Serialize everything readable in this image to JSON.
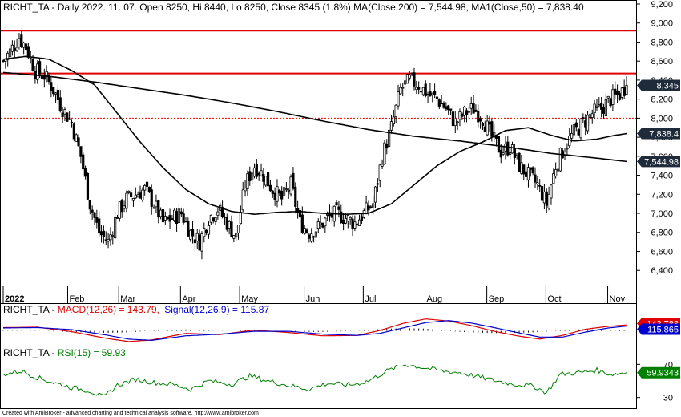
{
  "header": {
    "price_title": "RICHT_TA - Daily 2022. 11. 07. Open 8250, Hi 8440, Lo 8250, Close 8345 (1.8%) MA(Close,200) = 7,544.98, MA1(Close,50) = 7,838.40",
    "macd_name": "RICHT_TA - ",
    "macd_label": "MACD(12,26) = 143.79,",
    "signal_label": "Signal(12,26,9) = 115.87",
    "rsi_name": "RICHT_TA - ",
    "rsi_label": "RSI(15) = 59.93"
  },
  "footer": "Created with AmiBroker - advanced charting and technical analysis software. http://www.amibroker.com",
  "colors": {
    "candle": "#000000",
    "ma_line": "#000000",
    "hline_red": "#e00000",
    "macd": "#e00000",
    "signal": "#0000cc",
    "rsi": "#008000",
    "tag_dark": "#1f2a3a",
    "tag_macd": "#e00000",
    "tag_signal": "#0000cc",
    "tag_rsi": "#008000"
  },
  "price_tags": {
    "close": "8,345",
    "ma50": "7,838.4",
    "ma200": "7,544.98"
  },
  "macd_tags": {
    "macd": "143.788",
    "signal": "115.865"
  },
  "rsi_tag": "59.9343",
  "chart_data": [
    {
      "type": "candlestick",
      "title": "RICHT_TA - Daily",
      "x_labels": [
        "2022",
        "Feb",
        "Mar",
        "Apr",
        "May",
        "Jun",
        "Jul",
        "Aug",
        "Sep",
        "Oct",
        "Nov"
      ],
      "y_ticks": [
        "6,400",
        "6,600",
        "6,800",
        "7,000",
        "7,200",
        "7,400",
        "7,600",
        "7,800",
        "8,000",
        "8,200",
        "8,400",
        "8,600",
        "8,800",
        "9,000",
        "9,200"
      ],
      "ylim": [
        6250,
        9200
      ],
      "last_bar": {
        "open": 8250,
        "high": 8440,
        "low": 8250,
        "close": 8345,
        "change_pct": 1.8
      },
      "horizontal_lines": [
        {
          "value": 8920,
          "style": "solid",
          "color": "red"
        },
        {
          "value": 8470,
          "style": "solid",
          "color": "red"
        },
        {
          "value": 8000,
          "style": "dotted",
          "color": "red"
        }
      ],
      "close_anchors": [
        [
          0,
          8600
        ],
        [
          3,
          8700
        ],
        [
          7,
          8850
        ],
        [
          10,
          8750
        ],
        [
          14,
          8500
        ],
        [
          18,
          8450
        ],
        [
          22,
          8300
        ],
        [
          26,
          8100
        ],
        [
          30,
          7950
        ],
        [
          34,
          7600
        ],
        [
          38,
          7100
        ],
        [
          42,
          6800
        ],
        [
          46,
          6700
        ],
        [
          50,
          7000
        ],
        [
          54,
          7150
        ],
        [
          58,
          7200
        ],
        [
          62,
          7250
        ],
        [
          66,
          7100
        ],
        [
          70,
          6900
        ],
        [
          74,
          6950
        ],
        [
          78,
          7000
        ],
        [
          82,
          6800
        ],
        [
          86,
          6700
        ],
        [
          90,
          6950
        ],
        [
          94,
          7050
        ],
        [
          98,
          6900
        ],
        [
          102,
          6750
        ],
        [
          106,
          7300
        ],
        [
          110,
          7500
        ],
        [
          114,
          7400
        ],
        [
          118,
          7250
        ],
        [
          122,
          7150
        ],
        [
          126,
          7300
        ],
        [
          130,
          6900
        ],
        [
          134,
          6800
        ],
        [
          138,
          6850
        ],
        [
          142,
          6950
        ],
        [
          146,
          7000
        ],
        [
          150,
          6950
        ],
        [
          154,
          6900
        ],
        [
          158,
          7000
        ],
        [
          162,
          7100
        ],
        [
          166,
          7600
        ],
        [
          170,
          7900
        ],
        [
          174,
          8300
        ],
        [
          178,
          8400
        ],
        [
          182,
          8350
        ],
        [
          186,
          8250
        ],
        [
          190,
          8200
        ],
        [
          194,
          8100
        ],
        [
          198,
          7950
        ],
        [
          202,
          8050
        ],
        [
          206,
          8100
        ],
        [
          210,
          8000
        ],
        [
          214,
          7800
        ],
        [
          218,
          7650
        ],
        [
          222,
          7700
        ],
        [
          226,
          7500
        ],
        [
          230,
          7400
        ],
        [
          234,
          7300
        ],
        [
          238,
          7100
        ],
        [
          242,
          7500
        ],
        [
          246,
          7700
        ],
        [
          250,
          7850
        ],
        [
          254,
          7950
        ],
        [
          258,
          8050
        ],
        [
          262,
          8100
        ],
        [
          266,
          8200
        ],
        [
          270,
          8250
        ],
        [
          273,
          8345
        ]
      ],
      "series": [
        {
          "name": "MA(Close,200)",
          "last": 7544.98,
          "anchors": [
            [
              0,
              8480
            ],
            [
              20,
              8440
            ],
            [
              40,
              8380
            ],
            [
              60,
              8310
            ],
            [
              80,
              8240
            ],
            [
              100,
              8160
            ],
            [
              120,
              8070
            ],
            [
              140,
              7970
            ],
            [
              160,
              7880
            ],
            [
              180,
              7810
            ],
            [
              200,
              7760
            ],
            [
              220,
              7700
            ],
            [
              240,
              7630
            ],
            [
              260,
              7580
            ],
            [
              273,
              7545
            ]
          ]
        },
        {
          "name": "MA1(Close,50)",
          "last": 7838.4,
          "anchors": [
            [
              0,
              8620
            ],
            [
              10,
              8650
            ],
            [
              20,
              8620
            ],
            [
              30,
              8500
            ],
            [
              40,
              8350
            ],
            [
              50,
              8050
            ],
            [
              60,
              7750
            ],
            [
              70,
              7480
            ],
            [
              80,
              7250
            ],
            [
              90,
              7100
            ],
            [
              100,
              7020
            ],
            [
              110,
              6990
            ],
            [
              120,
              7010
            ],
            [
              130,
              7020
            ],
            [
              140,
              7000
            ],
            [
              150,
              6990
            ],
            [
              160,
              7000
            ],
            [
              170,
              7100
            ],
            [
              180,
              7300
            ],
            [
              190,
              7500
            ],
            [
              200,
              7650
            ],
            [
              210,
              7750
            ],
            [
              220,
              7870
            ],
            [
              230,
              7900
            ],
            [
              240,
              7820
            ],
            [
              250,
              7760
            ],
            [
              260,
              7780
            ],
            [
              268,
              7820
            ],
            [
              273,
              7838
            ]
          ]
        }
      ]
    },
    {
      "type": "line",
      "title": "MACD(12,26)",
      "ylim": [
        -300,
        400
      ],
      "series": [
        {
          "name": "MACD(12,26)",
          "last": 143.79,
          "anchors": [
            [
              0,
              80
            ],
            [
              15,
              90
            ],
            [
              30,
              -20
            ],
            [
              45,
              -180
            ],
            [
              55,
              -260
            ],
            [
              65,
              -220
            ],
            [
              80,
              -60
            ],
            [
              95,
              -90
            ],
            [
              110,
              20
            ],
            [
              125,
              -40
            ],
            [
              140,
              -120
            ],
            [
              155,
              -110
            ],
            [
              165,
              10
            ],
            [
              175,
              180
            ],
            [
              185,
              290
            ],
            [
              195,
              240
            ],
            [
              205,
              130
            ],
            [
              215,
              -10
            ],
            [
              225,
              -120
            ],
            [
              235,
              -200
            ],
            [
              245,
              -110
            ],
            [
              255,
              40
            ],
            [
              265,
              110
            ],
            [
              273,
              144
            ]
          ]
        },
        {
          "name": "Signal(12,26,9)",
          "last": 115.87,
          "anchors": [
            [
              0,
              70
            ],
            [
              15,
              80
            ],
            [
              30,
              30
            ],
            [
              45,
              -100
            ],
            [
              55,
              -200
            ],
            [
              65,
              -230
            ],
            [
              80,
              -120
            ],
            [
              95,
              -80
            ],
            [
              110,
              -10
            ],
            [
              125,
              -10
            ],
            [
              140,
              -80
            ],
            [
              155,
              -110
            ],
            [
              165,
              -60
            ],
            [
              175,
              70
            ],
            [
              185,
              200
            ],
            [
              195,
              250
            ],
            [
              205,
              190
            ],
            [
              215,
              80
            ],
            [
              225,
              -40
            ],
            [
              235,
              -150
            ],
            [
              245,
              -150
            ],
            [
              255,
              -30
            ],
            [
              265,
              70
            ],
            [
              273,
              116
            ]
          ]
        }
      ]
    },
    {
      "type": "line",
      "title": "RSI(15)",
      "y_ticks": [
        "30",
        "70"
      ],
      "ylim": [
        20,
        80
      ],
      "series": [
        {
          "name": "RSI(15)",
          "last": 59.93,
          "anchors": [
            [
              0,
              58
            ],
            [
              8,
              62
            ],
            [
              14,
              55
            ],
            [
              22,
              48
            ],
            [
              30,
              42
            ],
            [
              38,
              38
            ],
            [
              44,
              30
            ],
            [
              50,
              45
            ],
            [
              58,
              52
            ],
            [
              66,
              48
            ],
            [
              74,
              46
            ],
            [
              82,
              40
            ],
            [
              90,
              50
            ],
            [
              100,
              46
            ],
            [
              108,
              56
            ],
            [
              116,
              50
            ],
            [
              126,
              44
            ],
            [
              134,
              40
            ],
            [
              142,
              47
            ],
            [
              152,
              45
            ],
            [
              160,
              50
            ],
            [
              168,
              62
            ],
            [
              176,
              70
            ],
            [
              184,
              66
            ],
            [
              192,
              62
            ],
            [
              200,
              60
            ],
            [
              208,
              55
            ],
            [
              216,
              50
            ],
            [
              224,
              46
            ],
            [
              232,
              44
            ],
            [
              238,
              36
            ],
            [
              244,
              58
            ],
            [
              252,
              60
            ],
            [
              260,
              63
            ],
            [
              266,
              58
            ],
            [
              273,
              60
            ]
          ]
        }
      ]
    }
  ]
}
